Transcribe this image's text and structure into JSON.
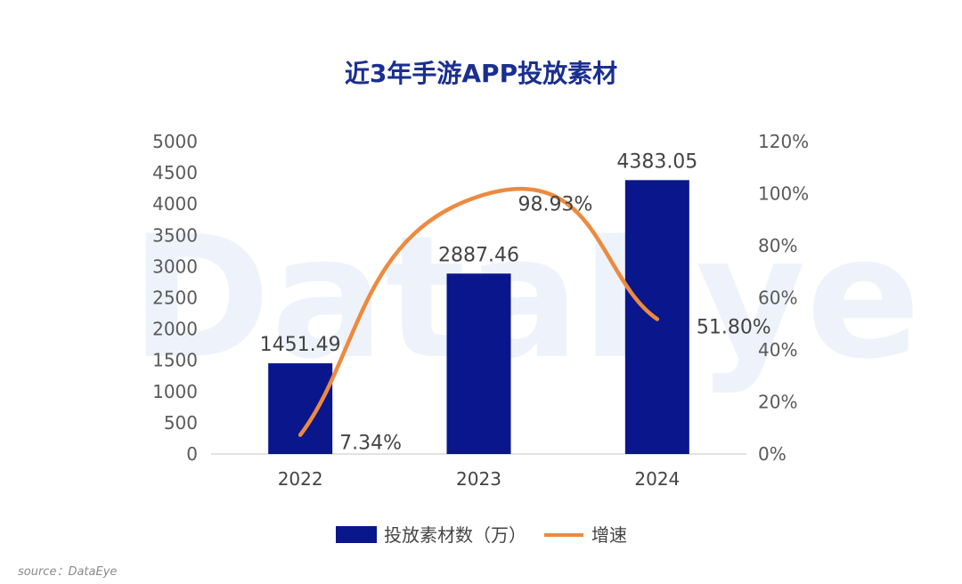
{
  "watermark": "DataEye",
  "source": "source：DataEye",
  "colors": {
    "bar": "#0a168c",
    "line": "#ed8a3f",
    "title": "#1a2f8f",
    "axis": "#d9d9d9"
  },
  "chart_data": {
    "type": "bar",
    "title": "近3年手游APP投放素材",
    "categories": [
      "2022",
      "2023",
      "2024"
    ],
    "series": [
      {
        "name": "投放素材数（万）",
        "type": "bar",
        "axis": "left",
        "values": [
          1451.49,
          2887.46,
          4383.05
        ],
        "labels": [
          "1451.49",
          "2887.46",
          "4383.05"
        ]
      },
      {
        "name": "增速",
        "type": "line",
        "axis": "right",
        "values": [
          7.34,
          98.93,
          51.8
        ],
        "labels": [
          "7.34%",
          "98.93%",
          "51.80%"
        ]
      }
    ],
    "y_left": {
      "ylim": [
        0,
        5000
      ],
      "ticks": [
        "0",
        "500",
        "1000",
        "1500",
        "2000",
        "2500",
        "3000",
        "3500",
        "4000",
        "4500",
        "5000"
      ]
    },
    "y_right": {
      "ylim": [
        0,
        120
      ],
      "ticks": [
        "0%",
        "20%",
        "40%",
        "60%",
        "80%",
        "100%",
        "120%"
      ]
    },
    "grid": false,
    "legend": "bottom"
  }
}
